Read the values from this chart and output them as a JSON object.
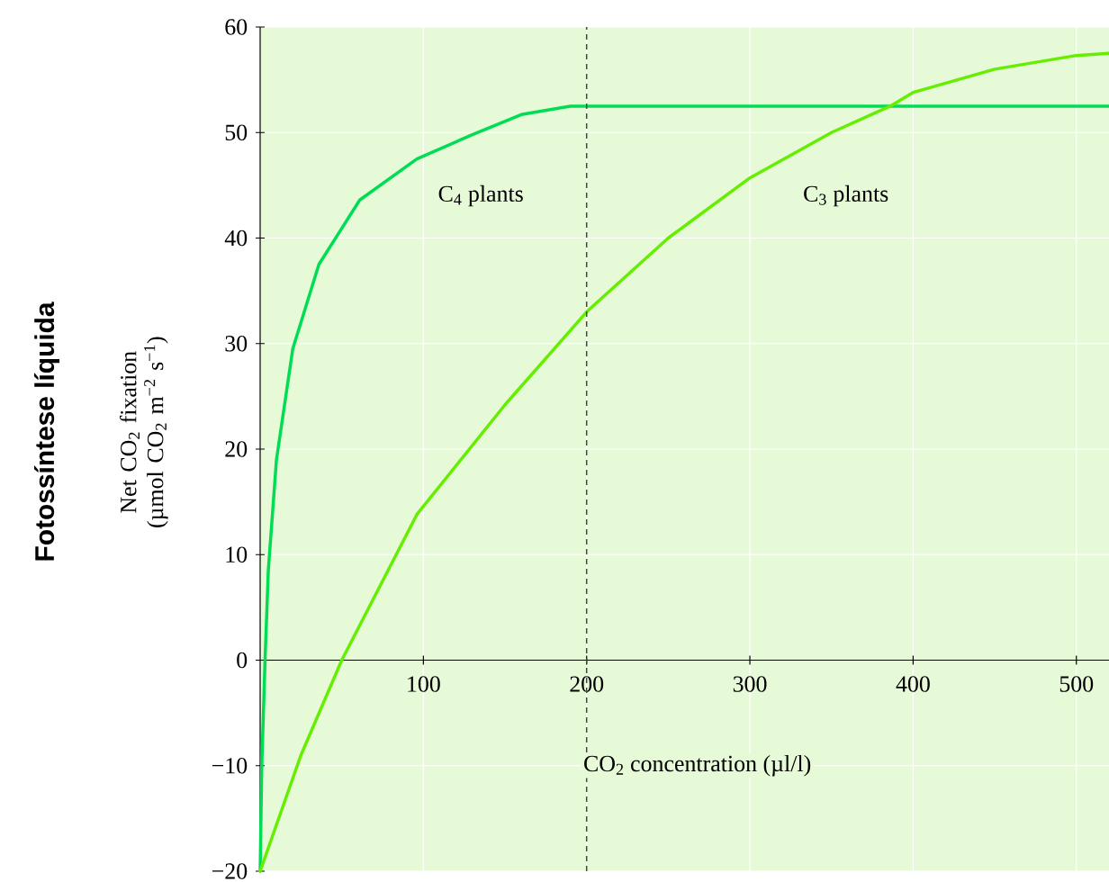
{
  "chart_data": {
    "type": "line",
    "xlabel": "CO$_{2}$ concentration (µl/l)",
    "ylabel": "Net CO$_{2}$ fixation (µmol CO$_{2}$ m$^{−2}$ s$^{−1}$)",
    "annotations": [
      "Fotossíntese líquida"
    ],
    "xlim": [
      0,
      520
    ],
    "ylim": [
      -20,
      60
    ],
    "xticks": [
      {
        "value": 0,
        "label": null
      },
      100,
      200,
      300,
      400,
      500
    ],
    "yticks": [
      {
        "value": -20,
        "label": "−20"
      },
      {
        "value": -10,
        "label": "−10"
      },
      0,
      10,
      20,
      30,
      40,
      50,
      60
    ],
    "grid": true,
    "marker": "none",
    "line_style": "solid",
    "ref_lines": [
      {
        "axis": "x",
        "value": 200,
        "line_style": "dashed",
        "color": "#444444"
      }
    ],
    "series": [
      {
        "name": "C$_{4}$ plants",
        "color": "#00dd55",
        "x": [
          0,
          1,
          3,
          5,
          10,
          20,
          36,
          61,
          96,
          130,
          160,
          190,
          200,
          520
        ],
        "values": [
          -20,
          -10,
          0,
          8.5,
          19,
          29.5,
          37.5,
          43.6,
          47.5,
          49.8,
          51.7,
          52.5,
          52.5,
          52.5
        ]
      },
      {
        "name": "C$_{3}$ plants",
        "color": "#66ee00",
        "x": [
          0,
          25,
          50,
          96,
          150,
          200,
          250,
          300,
          350,
          386,
          400,
          450,
          500,
          520
        ],
        "values": [
          -20,
          -9,
          0,
          13.8,
          24.2,
          33,
          40,
          45.7,
          50,
          52.5,
          53.8,
          56,
          57.3,
          57.5
        ]
      }
    ]
  }
}
